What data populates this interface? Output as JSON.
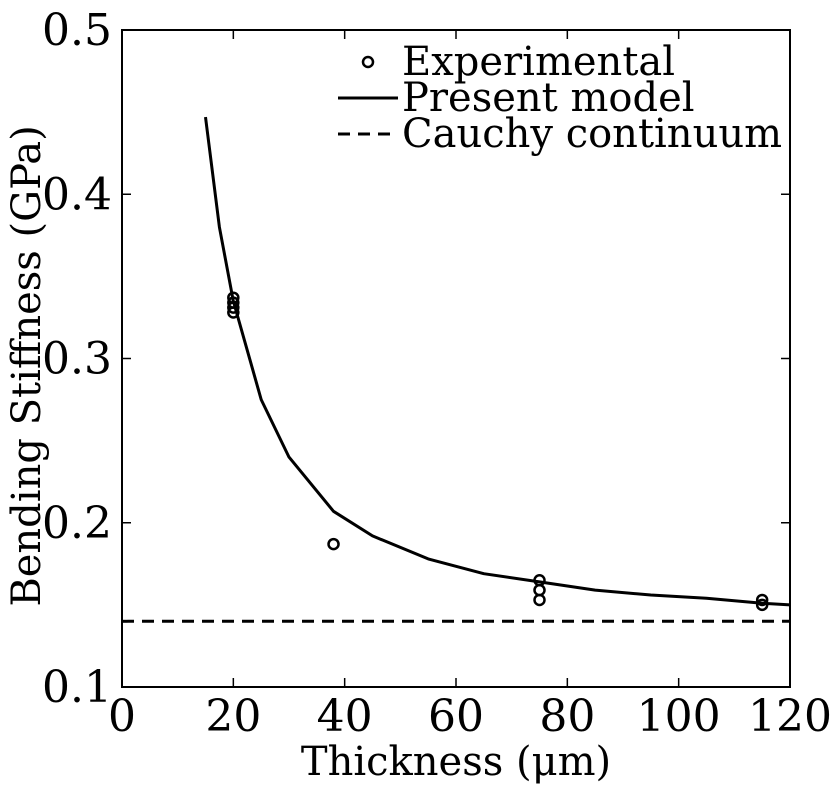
{
  "chart_data": {
    "type": "line",
    "title": "",
    "xlabel": "Thickness (μm)",
    "ylabel": "Bending Stiffness (GPa)",
    "xlim": [
      0,
      120
    ],
    "ylim": [
      0.1,
      0.5
    ],
    "xticks": [
      0,
      20,
      40,
      60,
      80,
      100,
      120
    ],
    "yticks": [
      0.1,
      0.2,
      0.3,
      0.4,
      0.5
    ],
    "xtick_labels": [
      "0",
      "20",
      "40",
      "60",
      "80",
      "100",
      "120"
    ],
    "ytick_labels": [
      "0.1",
      "0.2",
      "0.3",
      "0.4",
      "0.5"
    ],
    "grid": false,
    "legend_position": "top-right",
    "series": [
      {
        "name": "Experimental",
        "style": "open-circle-markers",
        "color": "#000000",
        "x": [
          20,
          20,
          20,
          20,
          38,
          75,
          75,
          75,
          115,
          115
        ],
        "y": [
          0.337,
          0.334,
          0.331,
          0.328,
          0.187,
          0.165,
          0.159,
          0.153,
          0.153,
          0.15
        ]
      },
      {
        "name": "Present model",
        "style": "solid-line",
        "color": "#000000",
        "x": [
          15,
          17.5,
          20,
          25,
          30,
          38,
          45,
          55,
          65,
          75,
          85,
          95,
          105,
          115,
          120
        ],
        "y": [
          0.447,
          0.38,
          0.335,
          0.275,
          0.24,
          0.207,
          0.192,
          0.178,
          0.169,
          0.164,
          0.159,
          0.156,
          0.154,
          0.151,
          0.15
        ]
      },
      {
        "name": "Cauchy continuum",
        "style": "dashed-line",
        "color": "#000000",
        "x": [
          0,
          120
        ],
        "y": [
          0.14,
          0.14
        ]
      }
    ]
  }
}
